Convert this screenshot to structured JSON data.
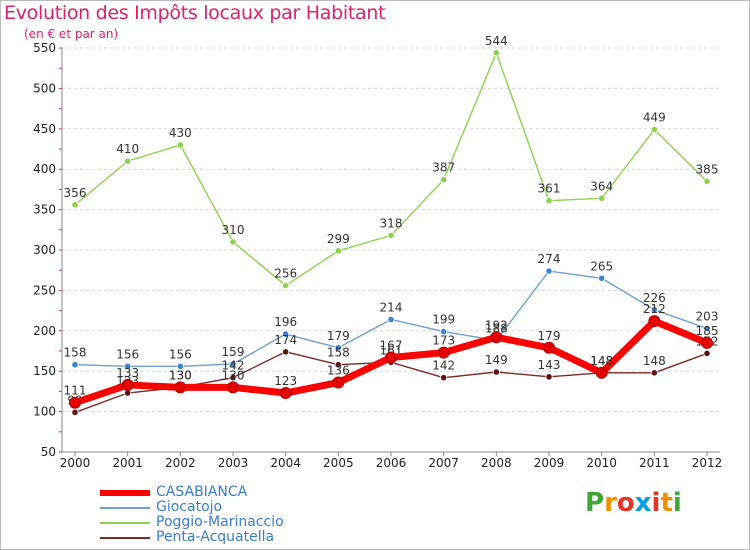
{
  "title": "Evolution des Impôts locaux par Habitant",
  "subtitle": "(en € et par an)",
  "brand": {
    "letters": [
      "P",
      "r",
      "o",
      "x",
      "i",
      "t",
      "i"
    ],
    "colors": [
      "#3fa535",
      "#f29100",
      "#e6332a",
      "#009fe3",
      "#e6332a",
      "#f29100",
      "#3fa535"
    ]
  },
  "chart_data": {
    "type": "line",
    "title": "Evolution des Impôts locaux par Habitant",
    "subtitle": "(en € et par an)",
    "xlabel": "",
    "ylabel": "",
    "x": [
      "2000",
      "2001",
      "2002",
      "2003",
      "2004",
      "2005",
      "2006",
      "2007",
      "2008",
      "2009",
      "2010",
      "2011",
      "2012"
    ],
    "ylim": [
      50,
      550
    ],
    "yticks": [
      "50",
      "100",
      "150",
      "200",
      "250",
      "300",
      "350",
      "400",
      "450",
      "500",
      "550"
    ],
    "grid": "horizontal",
    "legend_position": "bottom-left",
    "series": [
      {
        "name": "Poggio-Marinaccio",
        "color": "#8fd14f",
        "dot_color": "#8fd14f",
        "values": [
          356,
          410,
          430,
          310,
          256,
          299,
          318,
          387,
          544,
          361,
          364,
          449,
          385
        ],
        "labels": [
          "356",
          "410",
          "430",
          "310",
          "256",
          "299",
          "318",
          "387",
          "544",
          "361",
          "364",
          "449",
          "385"
        ]
      },
      {
        "name": "Giocatojo",
        "color": "#6f9ecf",
        "dot_color": "#3a84d1",
        "values": [
          158,
          156,
          156,
          159,
          196,
          179,
          214,
          199,
          188,
          274,
          265,
          226,
          203
        ],
        "labels": [
          "158",
          "156",
          "156",
          "159",
          "196",
          "179",
          "214",
          "199",
          "188",
          "274",
          "265",
          "226",
          "203"
        ]
      },
      {
        "name": "Penta-Acquatella",
        "color": "#7a2a2a",
        "dot_color": "#5a1414",
        "values": [
          99,
          123,
          130,
          142,
          174,
          158,
          161,
          142,
          149,
          143,
          148,
          148,
          172
        ],
        "labels": [
          "99",
          "123",
          "130",
          "142",
          "174",
          "158",
          "161",
          "142",
          "149",
          "143",
          "148",
          "148",
          "172"
        ]
      },
      {
        "name": "CASABIANCA",
        "color": "#ff0000",
        "dot_color": "#e40000",
        "values": [
          111,
          133,
          130,
          130,
          123,
          136,
          167,
          173,
          192,
          179,
          148,
          212,
          185
        ],
        "labels": [
          "111",
          "133",
          "130",
          "130",
          "123",
          "136",
          "167",
          "173",
          "192",
          "179",
          "148",
          "212",
          "185"
        ]
      }
    ]
  },
  "legend": [
    {
      "name": "CASABIANCA",
      "color": "#ff0000"
    },
    {
      "name": "Giocatojo",
      "color": "#6f9ecf"
    },
    {
      "name": "Poggio-Marinaccio",
      "color": "#8fd14f"
    },
    {
      "name": "Penta-Acquatella",
      "color": "#7a2a2a"
    }
  ]
}
